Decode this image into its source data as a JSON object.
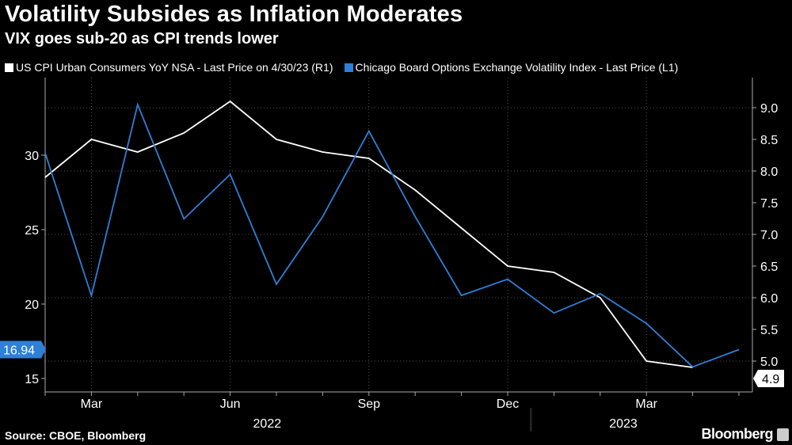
{
  "chart_data": {
    "type": "line",
    "title": "Volatility Subsides as Inflation Moderates",
    "subtitle": "VIX goes sub-20 as CPI trends lower",
    "x": [
      "2022-02-28",
      "2022-03-31",
      "2022-04-30",
      "2022-05-31",
      "2022-06-30",
      "2022-07-31",
      "2022-08-31",
      "2022-09-30",
      "2022-10-31",
      "2022-11-30",
      "2022-12-31",
      "2023-01-31",
      "2023-02-28",
      "2023-03-31",
      "2023-04-30",
      "2023-05-31"
    ],
    "x_tick_labels": [
      "Mar",
      "Jun",
      "Sep",
      "Dec",
      "Mar"
    ],
    "x_year_labels": [
      "2022",
      "2023"
    ],
    "series": [
      {
        "name": "US CPI Urban Consumers YoY NSA - Last Price on 4/30/23 (R1)",
        "axis": "right",
        "color": "#ffffff",
        "values": [
          7.9,
          8.5,
          8.3,
          8.6,
          9.1,
          8.5,
          8.3,
          8.2,
          7.7,
          7.1,
          6.5,
          6.4,
          6.0,
          5.0,
          4.9,
          null
        ],
        "last_label": "4.9"
      },
      {
        "name": "Chicago Board Options Exchange Volatility Index - Last Price (L1)",
        "axis": "left",
        "color": "#2f7fd6",
        "values": [
          30.15,
          20.56,
          33.4,
          25.72,
          28.71,
          21.33,
          25.87,
          31.62,
          25.88,
          20.58,
          21.67,
          19.4,
          20.7,
          18.7,
          15.78,
          16.94
        ],
        "last_label": "16.94"
      }
    ],
    "left_axis": {
      "ylim": [
        14,
        38
      ],
      "ticks": [
        15,
        20,
        25,
        30
      ]
    },
    "right_axis": {
      "ylim": [
        4.5,
        9.5
      ],
      "ticks": [
        "5.0",
        "5.5",
        "6.0",
        "6.5",
        "7.0",
        "7.5",
        "8.0",
        "8.5",
        "9.0"
      ]
    },
    "grid": true,
    "legend_placement": "top-left"
  },
  "source": "Source: CBOE, Bloomberg",
  "brand": "Bloomberg"
}
